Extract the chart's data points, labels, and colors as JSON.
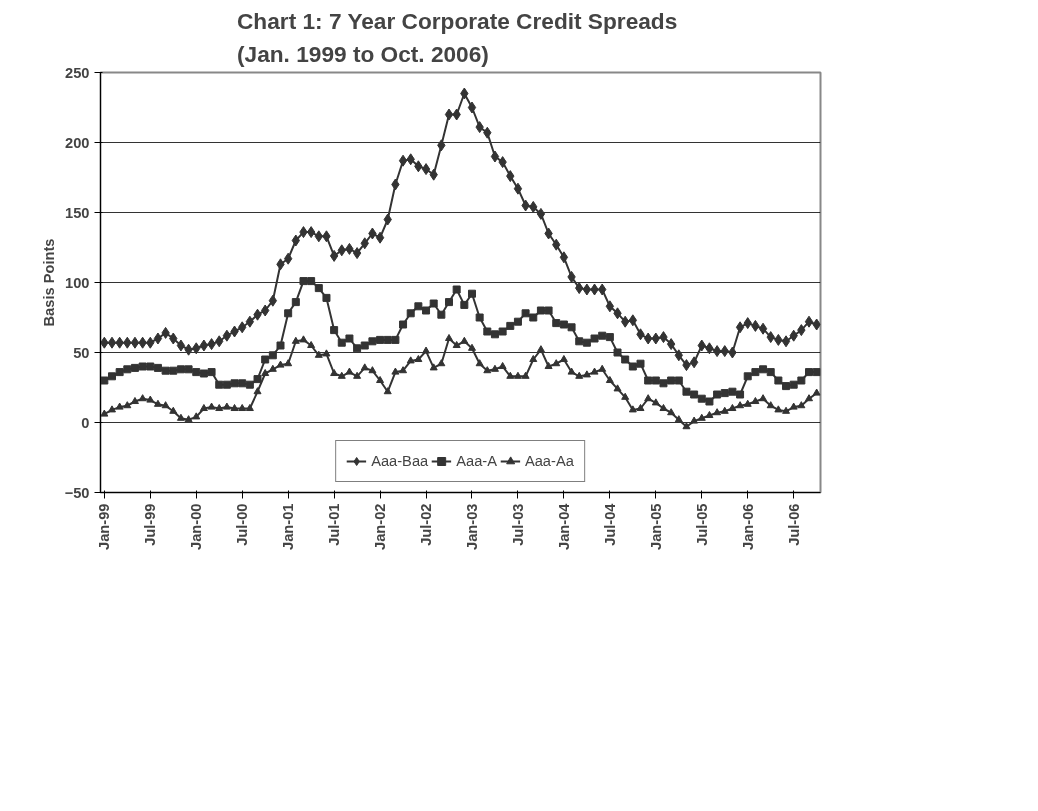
{
  "chart_data": {
    "type": "line",
    "title": "Chart 1:  7 Year Corporate Credit Spreads\n(Jan. 1999 to Oct. 2006)",
    "ylabel": "Basis Points",
    "categories": [
      "Jan-99",
      null,
      null,
      null,
      null,
      null,
      "Jul-99",
      null,
      null,
      null,
      null,
      null,
      "Jan-00",
      null,
      null,
      null,
      null,
      null,
      "Jul-00",
      null,
      null,
      null,
      null,
      null,
      "Jan-01",
      null,
      null,
      null,
      null,
      null,
      "Jul-01",
      null,
      null,
      null,
      null,
      null,
      "Jan-02",
      null,
      null,
      null,
      null,
      null,
      "Jul-02",
      null,
      null,
      null,
      null,
      null,
      "Jan-03",
      null,
      null,
      null,
      null,
      null,
      "Jul-03",
      null,
      null,
      null,
      null,
      null,
      "Jan-04",
      null,
      null,
      null,
      null,
      null,
      "Jul-04",
      null,
      null,
      null,
      null,
      null,
      "Jan-05",
      null,
      null,
      null,
      null,
      null,
      "Jul-05",
      null,
      null,
      null,
      null,
      null,
      "Jan-06",
      null,
      null,
      null,
      null,
      null,
      "Jul-06",
      null,
      null,
      null
    ],
    "series": [
      {
        "name": "Aaa-Baa",
        "color": "#333333",
        "marker": "diamond",
        "values": [
          57,
          57,
          57,
          57,
          57,
          57,
          57,
          60,
          64,
          60,
          55,
          52,
          53,
          55,
          56,
          58,
          62,
          65,
          68,
          72,
          77,
          80,
          87,
          113,
          117,
          130,
          136,
          136,
          133,
          133,
          119,
          123,
          124,
          121,
          128,
          135,
          132,
          145,
          170,
          187,
          188,
          183,
          181,
          177,
          198,
          220,
          220,
          235,
          225,
          211,
          207,
          190,
          186,
          176,
          167,
          155,
          154,
          149,
          135,
          127,
          118,
          104,
          96,
          95,
          95,
          95,
          83,
          78,
          72,
          73,
          63,
          60,
          60,
          61,
          56,
          48,
          41,
          43,
          55,
          53,
          51,
          51,
          50,
          68,
          71,
          69,
          67,
          61,
          59,
          58,
          62,
          66,
          72,
          70
        ]
      },
      {
        "name": "Aaa-A",
        "color": "#333333",
        "marker": "square",
        "values": [
          30,
          33,
          36,
          38,
          39,
          40,
          40,
          39,
          37,
          37,
          38,
          38,
          36,
          35,
          36,
          27,
          27,
          28,
          28,
          27,
          31,
          45,
          48,
          55,
          78,
          86,
          101,
          101,
          96,
          89,
          66,
          57,
          60,
          53,
          55,
          58,
          59,
          59,
          59,
          70,
          78,
          83,
          80,
          85,
          77,
          86,
          95,
          84,
          92,
          75,
          65,
          63,
          65,
          69,
          72,
          78,
          75,
          80,
          80,
          71,
          70,
          68,
          58,
          57,
          60,
          62,
          61,
          50,
          45,
          40,
          42,
          30,
          30,
          28,
          30,
          30,
          22,
          20,
          17,
          15,
          20,
          21,
          22,
          20,
          33,
          36,
          38,
          36,
          30,
          26,
          27,
          30,
          36,
          36
        ]
      },
      {
        "name": "Aaa-Aa",
        "color": "#333333",
        "marker": "triangle",
        "values": [
          6,
          9,
          11,
          12,
          15,
          17,
          16,
          13,
          12,
          8,
          3,
          2,
          4,
          10,
          11,
          10,
          11,
          10,
          10,
          10,
          22,
          35,
          38,
          41,
          42,
          58,
          59,
          55,
          48,
          49,
          35,
          33,
          36,
          33,
          39,
          37,
          30,
          22,
          36,
          37,
          44,
          45,
          51,
          39,
          42,
          60,
          55,
          58,
          53,
          42,
          37,
          38,
          40,
          33,
          33,
          33,
          45,
          52,
          40,
          42,
          45,
          36,
          33,
          34,
          36,
          38,
          30,
          24,
          18,
          9,
          10,
          17,
          14,
          10,
          7,
          2,
          -3,
          1,
          3,
          5,
          7,
          8,
          10,
          12,
          13,
          15,
          17,
          12,
          9,
          8,
          11,
          12,
          17,
          21
        ]
      }
    ],
    "ylim": [
      -50,
      250
    ],
    "yticks": [
      -50,
      0,
      50,
      100,
      150,
      200,
      250
    ],
    "grid": "y",
    "legend": "bottom",
    "line_style": "solid"
  }
}
